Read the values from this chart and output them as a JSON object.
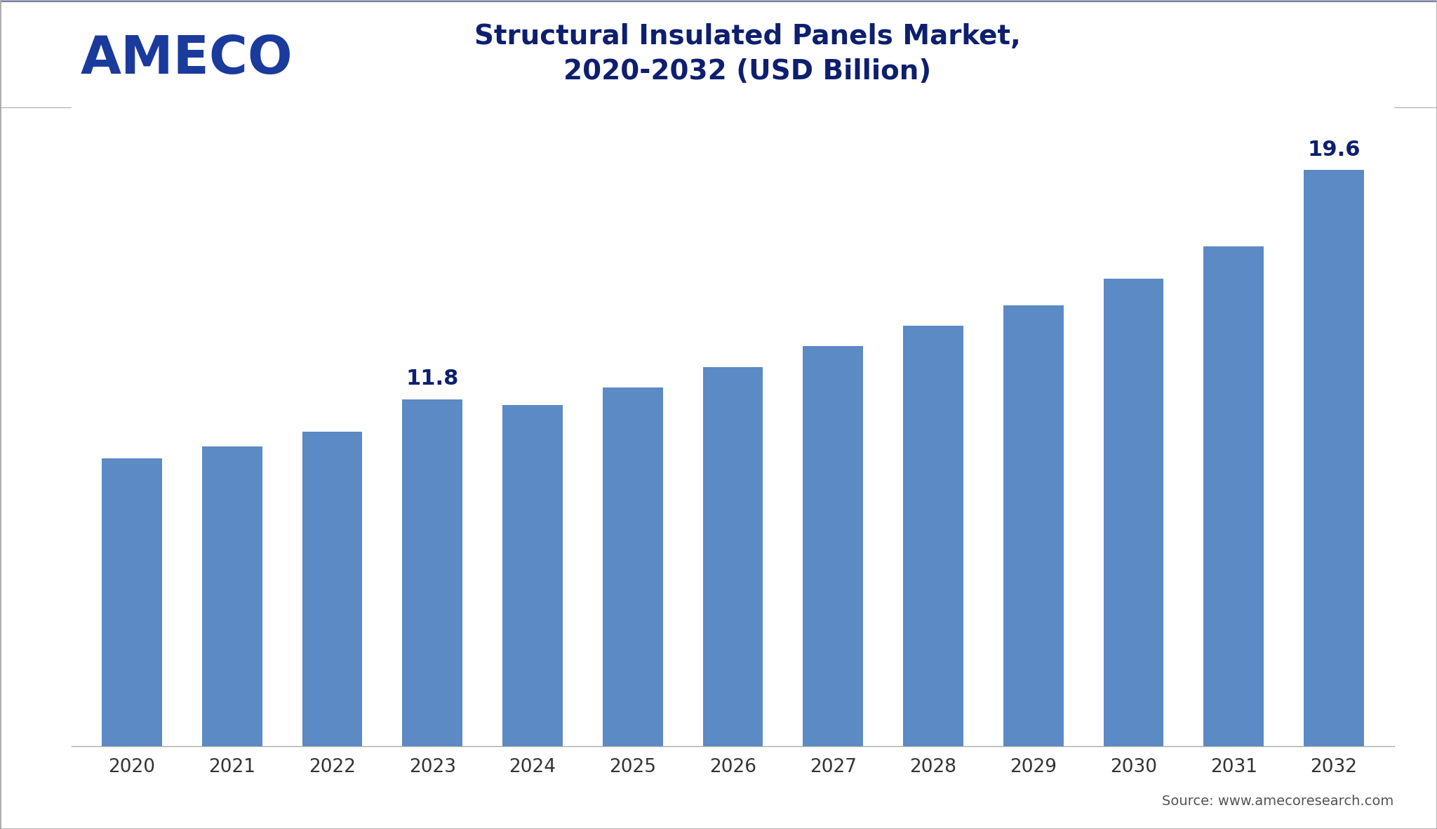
{
  "title_line1": "Structural Insulated Panels Market,",
  "title_line2": "2020-2032 (USD Billion)",
  "title_color": "#0d1f6e",
  "title_fontsize": 28,
  "logo_text": "AMECO",
  "logo_color": "#1a3a9c",
  "source_text": "Source: www.amecoresearch.com",
  "years": [
    2020,
    2021,
    2022,
    2023,
    2024,
    2025,
    2026,
    2027,
    2028,
    2029,
    2030,
    2031,
    2032
  ],
  "values": [
    9.8,
    10.2,
    10.7,
    11.8,
    11.6,
    12.2,
    12.9,
    13.6,
    14.3,
    15.0,
    15.9,
    17.0,
    19.6
  ],
  "bar_color": "#5b8ac4",
  "annotation_2023": "11.8",
  "annotation_2032": "19.6",
  "annotation_color": "#0d1f6e",
  "annotation_fontsize": 22,
  "bg_color": "#ffffff",
  "header_bg": "#ffffff",
  "plot_bg": "#ffffff",
  "border_color": "#cccccc",
  "tick_label_fontsize": 19,
  "tick_label_color": "#333333",
  "ylim": [
    0,
    22
  ],
  "bar_width": 0.6
}
